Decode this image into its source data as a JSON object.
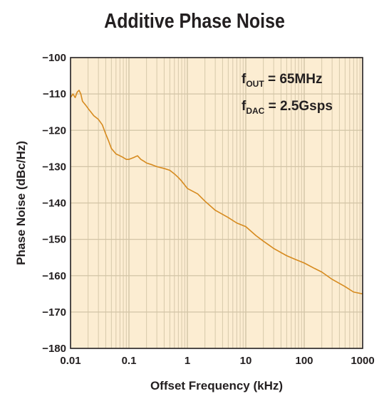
{
  "chart_data": {
    "type": "line",
    "title": "Additive Phase Noise",
    "xlabel": "Offset Frequency (kHz)",
    "ylabel": "Phase Noise (dBc/Hz)",
    "x_scale": "log",
    "xlim": [
      0.01,
      1000
    ],
    "ylim": [
      -180,
      -100
    ],
    "x_ticks": [
      "0.01",
      "0.1",
      "1",
      "10",
      "100",
      "1000"
    ],
    "y_ticks": [
      "−100",
      "−110",
      "−120",
      "−130",
      "−140",
      "−150",
      "−160",
      "−170",
      "−180"
    ],
    "grid": "on",
    "annotations": [
      {
        "main": "f",
        "sub": "OUT",
        "rest": " = 65MHz"
      },
      {
        "main": "f",
        "sub": "DAC",
        "rest": " = 2.5Gsps"
      }
    ],
    "colors": {
      "background": "#fcedd2",
      "grid": "#d2c4a6",
      "line": "#d68a1e",
      "frame": "#231f20"
    },
    "series": [
      {
        "x": [
          0.01,
          0.011,
          0.012,
          0.013,
          0.014,
          0.015,
          0.016,
          0.018,
          0.02,
          0.025,
          0.03,
          0.035,
          0.04,
          0.045,
          0.05,
          0.06,
          0.07,
          0.08,
          0.09,
          0.1,
          0.12,
          0.14,
          0.16,
          0.18,
          0.2,
          0.25,
          0.3,
          0.4,
          0.5,
          0.6,
          0.7,
          0.8,
          1,
          1.5,
          2,
          3,
          5,
          7,
          10,
          15,
          20,
          30,
          50,
          70,
          100,
          150,
          200,
          300,
          500,
          700,
          1000
        ],
        "y": [
          -111,
          -110,
          -111,
          -109.5,
          -109,
          -110,
          -112,
          -113,
          -114,
          -116,
          -117,
          -118.5,
          -121,
          -123,
          -125,
          -126.5,
          -127,
          -127.5,
          -128,
          -128,
          -127.5,
          -127,
          -128,
          -128.5,
          -129,
          -129.5,
          -130,
          -130.5,
          -131,
          -132,
          -133,
          -134,
          -136,
          -137.5,
          -139.5,
          -142,
          -144,
          -145.5,
          -146.5,
          -149,
          -150.5,
          -152.5,
          -154.5,
          -155.5,
          -156.5,
          -158,
          -159,
          -161,
          -163,
          -164.5,
          -165
        ]
      }
    ]
  }
}
